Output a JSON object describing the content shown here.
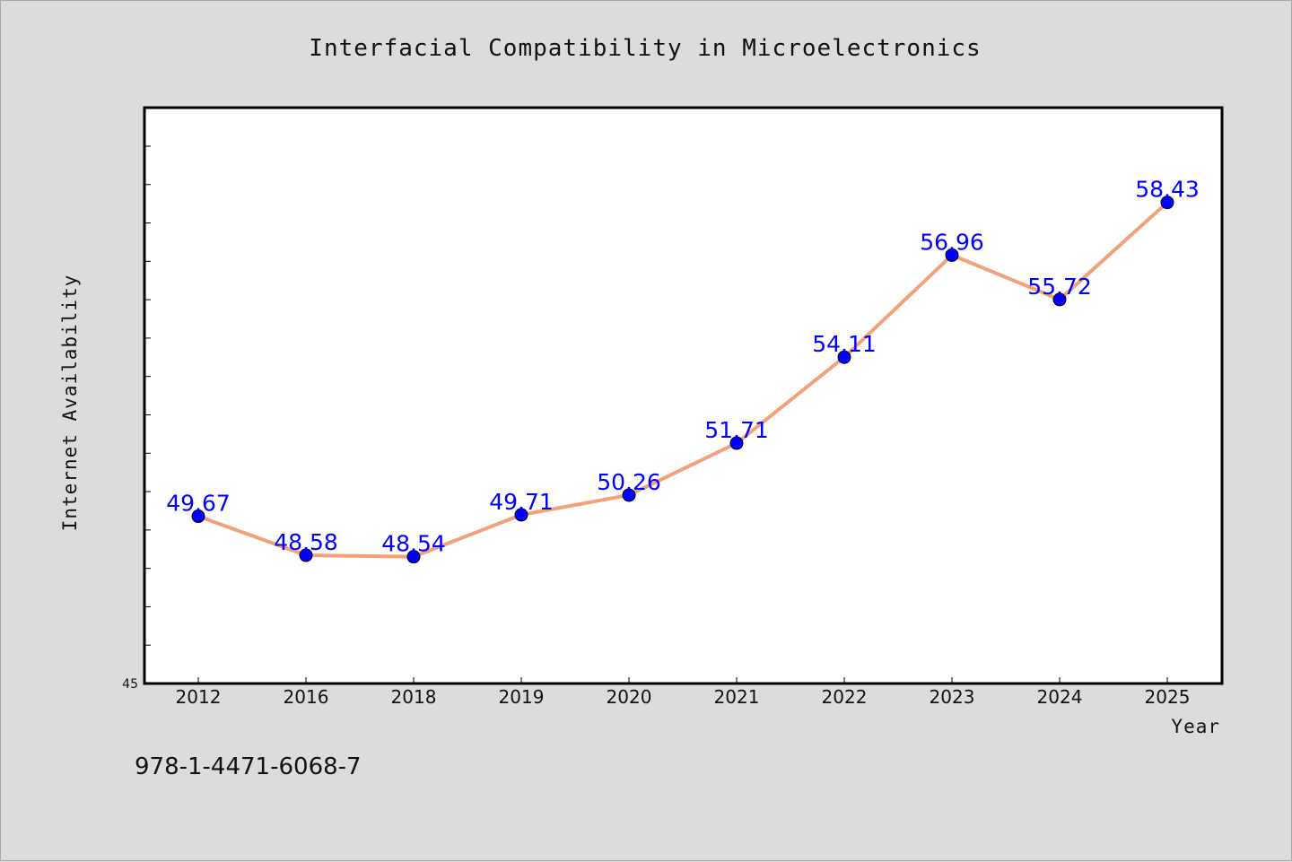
{
  "chart_data": {
    "type": "line",
    "title": "Interfacial Compatibility in Microelectronics",
    "xlabel": "Year",
    "ylabel": "Internet Availability",
    "categories": [
      "2012",
      "2016",
      "2018",
      "2019",
      "2020",
      "2021",
      "2022",
      "2023",
      "2024",
      "2025"
    ],
    "values": [
      49.67,
      48.58,
      48.54,
      49.71,
      50.26,
      51.71,
      54.11,
      56.96,
      55.72,
      58.43
    ],
    "data_labels": [
      "49.67",
      "48.58",
      "48.54",
      "49.71",
      "50.26",
      "51.71",
      "54.11",
      "56.96",
      "55.72",
      "58.43"
    ],
    "ylim": [
      45,
      60
    ],
    "ytick_labels": [
      {
        "value": 45,
        "label": "45"
      }
    ],
    "grid": false,
    "line_color": "#f4a07a",
    "marker_color": "#0000ff",
    "label_color": "#0000ff"
  },
  "footer": {
    "isbn": "978-1-4471-6068-7"
  }
}
